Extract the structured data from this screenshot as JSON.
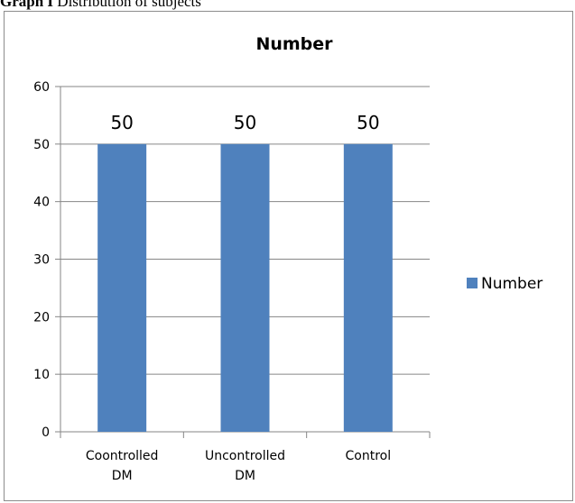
{
  "caption": {
    "bold": "Graph I",
    "text": " Distribution of subjects"
  },
  "colors": {
    "bar": "#4f81bd",
    "grid": "#868686",
    "axis": "#868686",
    "frame": "#8c8c8c"
  },
  "chart_data": {
    "type": "bar",
    "title": "Number",
    "categories": [
      [
        "Coontrolled",
        "DM"
      ],
      [
        "Uncontrolled",
        "DM"
      ],
      [
        "Control"
      ]
    ],
    "series": [
      {
        "name": "Number",
        "values": [
          50,
          50,
          50
        ]
      }
    ],
    "ylim": [
      0,
      60
    ],
    "yticks": [
      0,
      10,
      20,
      30,
      40,
      50,
      60
    ],
    "grid": true,
    "legend": "right",
    "data_labels": true
  }
}
